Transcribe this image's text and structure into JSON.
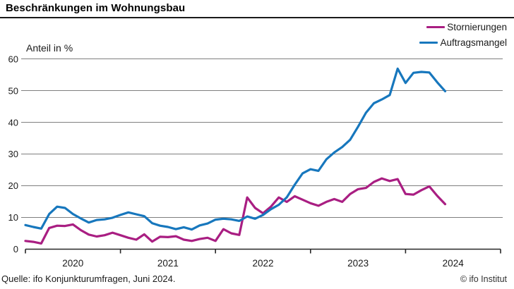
{
  "header": {
    "title": "Beschränkungen im Wohnungsbau"
  },
  "axis": {
    "ylabel": "Anteil in %"
  },
  "footer": {
    "source": "Quelle: ifo Konjunkturumfragen, Juni 2024.",
    "credit": "© ifo Institut"
  },
  "colors": {
    "stornierungen": "#a91e82",
    "auftragsmangel": "#1777bd",
    "gridline": "#7f7f7f",
    "axis_line": "#262626"
  },
  "chart_data": {
    "type": "line",
    "title": "Beschränkungen im Wohnungsbau",
    "ylabel": "Anteil in %",
    "xlabel": "",
    "ylim": [
      0,
      60
    ],
    "y_ticks": [
      0,
      10,
      20,
      30,
      40,
      50,
      60
    ],
    "x_tick_labels": [
      "2020",
      "2021",
      "2022",
      "2023",
      "2024"
    ],
    "x_start_month": "2020-01",
    "x_end_month": "2024-06",
    "x_axis_total_months": 60,
    "grid": true,
    "legend_position": "top-right",
    "series": [
      {
        "name": "Stornierungen",
        "color": "#a91e82",
        "values": [
          2.6,
          2.3,
          1.8,
          6.7,
          7.4,
          7.3,
          7.8,
          6.0,
          4.6,
          4.0,
          4.4,
          5.2,
          4.4,
          3.6,
          3.0,
          4.7,
          2.4,
          3.9,
          3.8,
          4.1,
          3.0,
          2.6,
          3.2,
          3.6,
          2.6,
          6.3,
          5.0,
          4.5,
          16.3,
          13.0,
          11.3,
          13.4,
          16.3,
          14.9,
          16.7,
          15.6,
          14.5,
          13.7,
          14.9,
          15.8,
          14.9,
          17.4,
          18.9,
          19.3,
          21.2,
          22.3,
          21.5,
          22.1,
          17.4,
          17.2,
          18.6,
          19.8,
          16.8,
          14.2
        ]
      },
      {
        "name": "Auftragsmangel",
        "color": "#1777bd",
        "values": [
          7.6,
          7.0,
          6.5,
          11.1,
          13.4,
          13.0,
          11.1,
          9.7,
          8.4,
          9.2,
          9.4,
          9.9,
          10.8,
          11.6,
          11.0,
          10.4,
          8.2,
          7.4,
          7.0,
          6.3,
          6.9,
          6.2,
          7.5,
          8.1,
          9.3,
          9.6,
          9.4,
          8.9,
          10.3,
          9.6,
          10.8,
          12.6,
          14.0,
          16.3,
          20.3,
          23.9,
          25.2,
          24.7,
          28.3,
          30.5,
          32.2,
          34.5,
          38.6,
          43.0,
          46.0,
          47.2,
          48.6,
          56.9,
          52.4,
          55.6,
          55.9,
          55.7,
          52.6,
          49.8
        ]
      }
    ]
  }
}
